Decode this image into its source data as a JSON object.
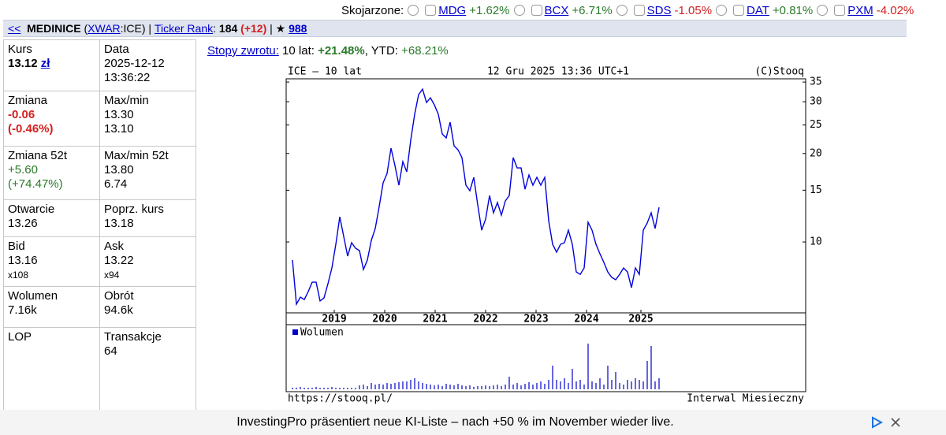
{
  "associated": {
    "label": "Skojarzone:",
    "items": [
      {
        "ticker": "MDG",
        "change": "+1.62%",
        "color": "#2a7a2a"
      },
      {
        "ticker": "BCX",
        "change": "+6.71%",
        "color": "#2a7a2a"
      },
      {
        "ticker": "SDS",
        "change": "-1.05%",
        "color": "#d42020"
      },
      {
        "ticker": "DAT",
        "change": "+0.81%",
        "color": "#2a7a2a"
      },
      {
        "ticker": "PXM",
        "change": "-4.02%",
        "color": "#d42020"
      }
    ]
  },
  "header": {
    "parts": [
      {
        "text": "<<",
        "style": "link"
      },
      {
        "text": "  "
      },
      {
        "text": "MEDINICE",
        "style": "b"
      },
      {
        "text": " ("
      },
      {
        "text": "XWAR",
        "style": "link"
      },
      {
        "text": ":ICE) | "
      },
      {
        "text": "Ticker Rank",
        "style": "link"
      },
      {
        "text": ": "
      },
      {
        "text": "184",
        "style": "b"
      },
      {
        "text": " "
      },
      {
        "text": "(+12)",
        "style": "red"
      },
      {
        "text": " | ★ "
      },
      {
        "text": "988",
        "style": "link b"
      }
    ]
  },
  "quote": {
    "rows": [
      [
        {
          "label": "Kurs",
          "values": [
            "13.12",
            "zł"
          ]
        },
        {
          "label": "Data",
          "values": [
            "2025-12-12",
            "13:36:22"
          ]
        }
      ],
      [
        {
          "label": "Zmiana",
          "values": [
            "-0.06",
            "(-0.46%)"
          ]
        },
        {
          "label": "Max/min",
          "values": [
            "13.30",
            "13.10"
          ]
        }
      ],
      [
        {
          "label": "Zmiana 52t",
          "values": [
            "+5.60",
            "(+74.47%)"
          ]
        },
        {
          "label": "Max/min 52t",
          "values": [
            "13.80",
            "6.74"
          ]
        }
      ],
      [
        {
          "label": "Otwarcie",
          "values": [
            "13.26"
          ]
        },
        {
          "label": "Poprz. kurs",
          "values": [
            "13.18"
          ]
        }
      ],
      [
        {
          "label": "Bid",
          "values": [
            "13.16",
            "x108"
          ]
        },
        {
          "label": "Ask",
          "values": [
            "13.22",
            "x94"
          ]
        }
      ],
      [
        {
          "label": "Wolumen",
          "values": [
            "7.16k"
          ]
        },
        {
          "label": "Obrót",
          "values": [
            "94.6k"
          ]
        }
      ],
      [
        {
          "label": "LOP"
        },
        {
          "label": "Transakcje",
          "values": [
            "64"
          ]
        }
      ]
    ]
  },
  "returns": {
    "link": "Stopy zwrotu:",
    "period": " 10 lat: ",
    "period_value": "+21.48%",
    "sep": ", YTD: ",
    "ytd_value": "+68.21%"
  },
  "chart_data": [
    {
      "type": "line",
      "title": "ICE – 10 lat",
      "date": "12 Gru 2025 13:36 UTC+1",
      "copyright": "(C)Stooq",
      "source": "https://stooq.pl/",
      "interval": "Interwal Miesieczny",
      "color": "#0000dd",
      "log_scale": true,
      "values": [
        8.68,
        6.14,
        6.49,
        6.37,
        6.78,
        7.3,
        7.3,
        6.3,
        6.45,
        7.21,
        8.16,
        9.82,
        12.18,
        10.44,
        8.95,
        9.94,
        9.52,
        9.34,
        8.06,
        8.68,
        10.12,
        11.11,
        13.2,
        15.89,
        17.11,
        20.85,
        18.2,
        15.6,
        18.77,
        17.32,
        22.18,
        27.19,
        31.72,
        33.11,
        29.82,
        30.94,
        29.27,
        27.19,
        23.3,
        22.59,
        25.56,
        21.24,
        20.59,
        19.36,
        15.6,
        14.94,
        16.59,
        13.37,
        10.97,
        11.96,
        14.39,
        12.56,
        13.62,
        12.34,
        13.79,
        14.39,
        19.36,
        17.86,
        17.86,
        15.12,
        16.9,
        15.6,
        16.59,
        15.6,
        16.59,
        11.81,
        9.82,
        9.23,
        9.82,
        9.94,
        10.97,
        9.82,
        7.91,
        7.76,
        8.16,
        11.67,
        10.97,
        9.82,
        9.12,
        8.52,
        7.91,
        7.58,
        7.44,
        7.76,
        8.16,
        7.91,
        6.99,
        8.16,
        7.76,
        10.97,
        11.6,
        12.56,
        11.11,
        13.12
      ],
      "xlim": [
        -1.6,
        130.2
      ],
      "xticks": [
        {
          "value": 10.6,
          "label": "2019"
        },
        {
          "value": 23.4,
          "label": "2020"
        },
        {
          "value": 36.2,
          "label": "2021"
        },
        {
          "value": 49,
          "label": "2022"
        },
        {
          "value": 61.8,
          "label": "2023"
        },
        {
          "value": 74.6,
          "label": "2024"
        },
        {
          "value": 88.4,
          "label": "2025"
        }
      ],
      "ylim": [
        5.74,
        35.9
      ],
      "yticks": [
        10,
        15,
        20,
        25,
        30,
        35
      ]
    },
    {
      "type": "bar",
      "xlim": [
        -1.6,
        130.2
      ],
      "ylim": [
        0,
        80
      ],
      "series": [
        {
          "name": "Wolumen",
          "color": "#0000cc",
          "values": [
            2,
            2,
            3,
            2,
            2,
            2,
            3,
            2,
            2,
            2,
            3,
            2,
            2,
            2,
            2,
            2,
            2,
            5,
            6,
            4,
            8,
            6,
            7,
            6,
            8,
            7,
            8,
            9,
            10,
            10,
            12,
            14,
            10,
            8,
            7,
            6,
            5,
            6,
            4,
            7,
            6,
            5,
            7,
            5,
            4,
            5,
            3,
            4,
            4,
            5,
            4,
            5,
            6,
            4,
            6,
            16,
            6,
            8,
            5,
            7,
            9,
            6,
            8,
            10,
            7,
            12,
            30,
            12,
            10,
            14,
            8,
            26,
            10,
            12,
            6,
            58,
            10,
            8,
            14,
            6,
            30,
            12,
            22,
            8,
            6,
            12,
            10,
            14,
            12,
            10,
            36,
            55,
            10,
            14
          ]
        }
      ]
    }
  ],
  "ad": {
    "text": "InvestingPro präsentiert neue KI-Liste – nach +50 % im November wieder live."
  }
}
